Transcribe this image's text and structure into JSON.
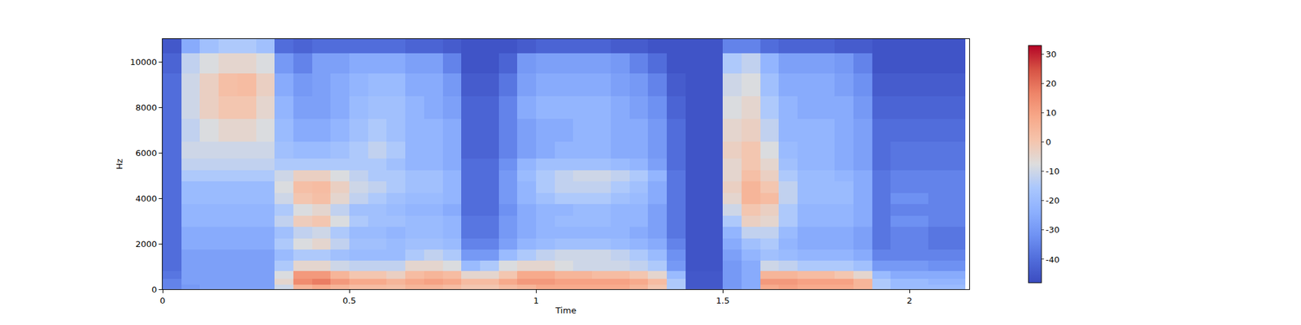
{
  "chart_data": {
    "type": "heatmap",
    "x_label": "Time",
    "y_label": "Hz",
    "xlim": [
      0,
      2.16
    ],
    "ylim": [
      0,
      11025
    ],
    "xticks": [
      0,
      0.5,
      1,
      1.5,
      2
    ],
    "yticks": [
      0,
      2000,
      4000,
      6000,
      8000,
      10000
    ],
    "colorbar": {
      "range": [
        -48,
        33
      ],
      "ticks": [
        -40,
        -30,
        -20,
        -10,
        0,
        10,
        20,
        30
      ]
    },
    "x": [
      0.025,
      0.075,
      0.125,
      0.175,
      0.225,
      0.275,
      0.325,
      0.375,
      0.425,
      0.475,
      0.525,
      0.575,
      0.625,
      0.675,
      0.725,
      0.775,
      0.825,
      0.875,
      0.925,
      0.975,
      1.025,
      1.075,
      1.125,
      1.175,
      1.225,
      1.275,
      1.325,
      1.375,
      1.425,
      1.475,
      1.525,
      1.575,
      1.625,
      1.675,
      1.725,
      1.775,
      1.825,
      1.875,
      1.925,
      1.975,
      2.025,
      2.075,
      2.125
    ],
    "y": [
      100,
      300,
      600,
      1000,
      1500,
      2000,
      2500,
      3000,
      3500,
      4000,
      4500,
      5000,
      5500,
      6000,
      7000,
      8000,
      9000,
      10000,
      10800
    ],
    "cells": [
      [
        -35,
        -30,
        -28,
        -28,
        -28,
        -28,
        -10,
        5,
        8,
        5,
        3,
        3,
        2,
        5,
        5,
        3,
        0,
        0,
        3,
        5,
        8,
        8,
        8,
        8,
        8,
        5,
        0,
        -15,
        -45,
        -45,
        -30,
        -25,
        8,
        10,
        8,
        8,
        8,
        5,
        -15,
        -20,
        -20,
        -20,
        -20
      ],
      [
        -35,
        -28,
        -28,
        -28,
        -28,
        -28,
        -5,
        15,
        18,
        12,
        8,
        8,
        5,
        8,
        10,
        8,
        3,
        3,
        8,
        12,
        12,
        10,
        10,
        10,
        10,
        8,
        3,
        -15,
        -45,
        -45,
        -30,
        -25,
        12,
        12,
        10,
        10,
        10,
        5,
        -15,
        -20,
        -20,
        -22,
        -22
      ],
      [
        -38,
        -28,
        -28,
        -28,
        -28,
        -28,
        -8,
        12,
        12,
        5,
        0,
        0,
        -3,
        3,
        5,
        3,
        -5,
        -5,
        0,
        8,
        8,
        5,
        5,
        3,
        3,
        0,
        -5,
        -20,
        -45,
        -45,
        -30,
        -25,
        5,
        5,
        3,
        3,
        0,
        -5,
        -20,
        -25,
        -25,
        -25,
        -25
      ],
      [
        -40,
        -28,
        -28,
        -28,
        -28,
        -28,
        -15,
        -5,
        -5,
        -10,
        -12,
        -12,
        -12,
        -5,
        -5,
        -8,
        -20,
        -15,
        -8,
        -5,
        -5,
        -8,
        -10,
        -10,
        -10,
        -12,
        -15,
        -30,
        -46,
        -46,
        -30,
        -25,
        -10,
        -12,
        -15,
        -15,
        -15,
        -18,
        -30,
        -30,
        -30,
        -32,
        -32
      ],
      [
        -40,
        -28,
        -28,
        -28,
        -28,
        -28,
        -20,
        -15,
        -15,
        -18,
        -20,
        -20,
        -20,
        -15,
        -12,
        -15,
        -30,
        -30,
        -20,
        -15,
        -12,
        -10,
        -10,
        -10,
        -12,
        -15,
        -20,
        -32,
        -46,
        -46,
        -28,
        -22,
        -18,
        -20,
        -22,
        -22,
        -22,
        -25,
        -35,
        -35,
        -35,
        -35,
        -35
      ],
      [
        -40,
        -25,
        -25,
        -25,
        -25,
        -25,
        -15,
        -8,
        -5,
        -12,
        -18,
        -18,
        -20,
        -18,
        -18,
        -20,
        -35,
        -35,
        -28,
        -22,
        -20,
        -18,
        -18,
        -18,
        -20,
        -22,
        -25,
        -35,
        -46,
        -46,
        -25,
        -18,
        -15,
        -22,
        -25,
        -25,
        -25,
        -28,
        -38,
        -35,
        -35,
        -38,
        -38
      ],
      [
        -40,
        -25,
        -25,
        -25,
        -25,
        -25,
        -18,
        -12,
        -10,
        -15,
        -20,
        -20,
        -22,
        -20,
        -20,
        -22,
        -38,
        -38,
        -30,
        -25,
        -22,
        -22,
        -22,
        -22,
        -22,
        -25,
        -28,
        -38,
        -46,
        -46,
        -22,
        -12,
        -12,
        -20,
        -25,
        -25,
        -25,
        -28,
        -38,
        -35,
        -35,
        -38,
        -38
      ],
      [
        -40,
        -22,
        -22,
        -22,
        -22,
        -22,
        -12,
        -2,
        0,
        -8,
        -15,
        -18,
        -18,
        -20,
        -20,
        -22,
        -38,
        -38,
        -30,
        -25,
        -22,
        -20,
        -20,
        -20,
        -22,
        -22,
        -28,
        -38,
        -46,
        -46,
        -15,
        -3,
        -5,
        -15,
        -22,
        -22,
        -22,
        -25,
        -38,
        -32,
        -32,
        -35,
        -35
      ],
      [
        -40,
        -22,
        -22,
        -22,
        -22,
        -22,
        -15,
        -8,
        -5,
        -12,
        -18,
        -18,
        -20,
        -22,
        -22,
        -25,
        -40,
        -40,
        -32,
        -25,
        -22,
        -22,
        -20,
        -20,
        -22,
        -22,
        -28,
        -38,
        -46,
        -46,
        -10,
        0,
        -3,
        -15,
        -22,
        -22,
        -22,
        -25,
        -38,
        -35,
        -35,
        -35,
        -35
      ],
      [
        -40,
        -20,
        -20,
        -20,
        -20,
        -20,
        -10,
        0,
        2,
        -5,
        -12,
        -15,
        -18,
        -20,
        -20,
        -22,
        -40,
        -40,
        -30,
        -22,
        -18,
        -15,
        -15,
        -15,
        -18,
        -20,
        -25,
        -38,
        -46,
        -46,
        -5,
        5,
        3,
        -12,
        -20,
        -20,
        -20,
        -25,
        -38,
        -32,
        -32,
        -35,
        -35
      ],
      [
        -40,
        -20,
        -20,
        -20,
        -20,
        -20,
        -8,
        2,
        3,
        -3,
        -10,
        -12,
        -15,
        -18,
        -18,
        -22,
        -40,
        -40,
        -30,
        -22,
        -15,
        -12,
        -12,
        -12,
        -15,
        -18,
        -25,
        -38,
        -46,
        -46,
        -3,
        5,
        0,
        -12,
        -20,
        -20,
        -20,
        -25,
        -38,
        -35,
        -35,
        -35,
        -35
      ],
      [
        -40,
        -15,
        -15,
        -15,
        -15,
        -15,
        -10,
        -3,
        -3,
        -8,
        -12,
        -15,
        -15,
        -18,
        -18,
        -22,
        -40,
        -40,
        -30,
        -20,
        -15,
        -12,
        -10,
        -10,
        -12,
        -15,
        -22,
        -38,
        -46,
        -46,
        -5,
        2,
        -3,
        -15,
        -20,
        -20,
        -22,
        -25,
        -38,
        -35,
        -35,
        -35,
        -35
      ],
      [
        -40,
        -12,
        -12,
        -12,
        -12,
        -12,
        -15,
        -15,
        -15,
        -15,
        -15,
        -15,
        -18,
        -22,
        -22,
        -25,
        -40,
        -40,
        -32,
        -22,
        -18,
        -18,
        -18,
        -18,
        -20,
        -22,
        -28,
        -40,
        -46,
        -46,
        -5,
        0,
        -5,
        -18,
        -22,
        -22,
        -25,
        -28,
        -40,
        -38,
        -38,
        -38,
        -38
      ],
      [
        -40,
        -10,
        -10,
        -10,
        -10,
        -10,
        -18,
        -20,
        -20,
        -18,
        -15,
        -12,
        -15,
        -22,
        -22,
        -25,
        -42,
        -42,
        -35,
        -28,
        -25,
        -22,
        -22,
        -22,
        -25,
        -25,
        -30,
        -40,
        -46,
        -46,
        -3,
        0,
        -8,
        -20,
        -22,
        -22,
        -25,
        -28,
        -40,
        -38,
        -38,
        -38,
        -38
      ],
      [
        -40,
        -12,
        -8,
        -5,
        -5,
        -8,
        -20,
        -25,
        -25,
        -22,
        -18,
        -15,
        -18,
        -22,
        -22,
        -25,
        -42,
        -42,
        -35,
        -28,
        -25,
        -25,
        -22,
        -22,
        -25,
        -25,
        -30,
        -40,
        -46,
        -46,
        -5,
        -3,
        -12,
        -22,
        -22,
        -22,
        -25,
        -28,
        -40,
        -40,
        -40,
        -40,
        -40
      ],
      [
        -40,
        -10,
        -3,
        0,
        0,
        -5,
        -22,
        -28,
        -28,
        -25,
        -20,
        -18,
        -18,
        -22,
        -25,
        -28,
        -42,
        -42,
        -35,
        -25,
        -22,
        -22,
        -22,
        -22,
        -25,
        -28,
        -32,
        -42,
        -46,
        -46,
        -8,
        -5,
        -15,
        -22,
        -25,
        -25,
        -25,
        -30,
        -42,
        -42,
        -42,
        -42,
        -42
      ],
      [
        -40,
        -10,
        -3,
        2,
        3,
        -3,
        -25,
        -30,
        -28,
        -25,
        -22,
        -20,
        -20,
        -25,
        -25,
        -30,
        -44,
        -44,
        -38,
        -28,
        -25,
        -25,
        -25,
        -25,
        -28,
        -30,
        -35,
        -44,
        -46,
        -46,
        -10,
        -8,
        -18,
        -25,
        -25,
        -25,
        -28,
        -32,
        -44,
        -44,
        -44,
        -44,
        -44
      ],
      [
        -42,
        -12,
        -8,
        -5,
        -5,
        -8,
        -30,
        -35,
        -28,
        -28,
        -25,
        -25,
        -25,
        -28,
        -28,
        -35,
        -46,
        -46,
        -42,
        -30,
        -28,
        -28,
        -28,
        -28,
        -30,
        -35,
        -40,
        -46,
        -46,
        -46,
        -15,
        -12,
        -22,
        -28,
        -28,
        -28,
        -30,
        -35,
        -46,
        -46,
        -46,
        -46,
        -46
      ],
      [
        -45,
        -25,
        -18,
        -15,
        -15,
        -18,
        -40,
        -42,
        -40,
        -40,
        -40,
        -40,
        -40,
        -42,
        -42,
        -44,
        -46,
        -46,
        -46,
        -44,
        -42,
        -42,
        -42,
        -42,
        -44,
        -44,
        -46,
        -46,
        -46,
        -46,
        -35,
        -35,
        -40,
        -42,
        -42,
        -42,
        -44,
        -44,
        -46,
        -46,
        -46,
        -46,
        -46
      ]
    ]
  }
}
